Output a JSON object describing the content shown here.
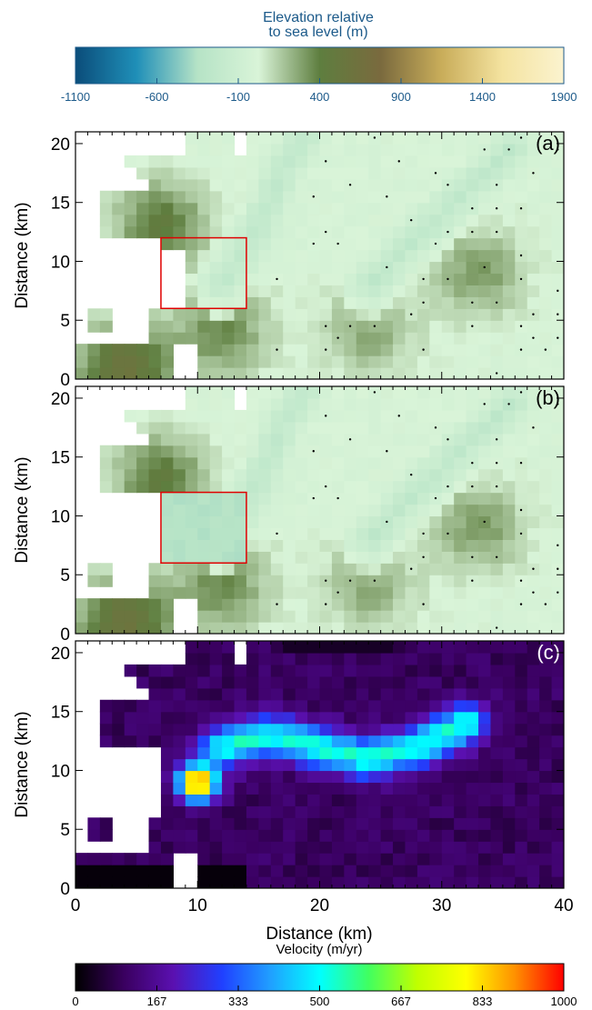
{
  "colors": {
    "elevation_stops": [
      "#0b4d7a",
      "#1f8fb8",
      "#b6e3c6",
      "#d9f4d8",
      "#5e7e3f",
      "#7a6a3e",
      "#c9ad5a",
      "#f4e3a0",
      "#fbf3cf"
    ],
    "velocity_stops": [
      "#000000",
      "#3a0060",
      "#5a10b0",
      "#2040ff",
      "#20a0ff",
      "#00ffff",
      "#40ff60",
      "#c0ff00",
      "#ffff00",
      "#ff9000",
      "#ff0000"
    ],
    "axis_label": "#000000",
    "colorbar_tick": "#1c5a8a",
    "box": "#e00000"
  },
  "top_colorbar": {
    "title_line1": "Elevation relative",
    "title_line2": "to sea level (m)",
    "ticks": [
      "-1100",
      "-600",
      "-100",
      "400",
      "900",
      "1400",
      "1900"
    ]
  },
  "bottom_colorbar": {
    "title": "Velocity (m/yr)",
    "ticks": [
      "0",
      "167",
      "333",
      "500",
      "667",
      "833",
      "1000"
    ]
  },
  "panels": {
    "ylabel": "Distance (km)",
    "xlabel": "Distance (km)",
    "a_label": "(a)",
    "b_label": "(b)",
    "c_label": "(c)"
  },
  "chart_data": [
    {
      "type": "heatmap",
      "panel": "(a)",
      "variable": "Elevation relative to sea level (m)",
      "xlabel": "",
      "ylabel": "Distance (km)",
      "xlim": [
        0,
        40
      ],
      "ylim": [
        0,
        21
      ],
      "yticks": [
        0,
        5,
        10,
        15,
        20
      ],
      "clim": [
        -1100,
        1900
      ],
      "box_km": {
        "x0": 7,
        "x1": 14,
        "y0": 6,
        "y1": 12
      },
      "features": {
        "ridges": [
          {
            "points": [
              [
                12,
                8
              ],
              [
                15,
                13
              ],
              [
                17,
                18
              ],
              [
                19,
                21
              ]
            ],
            "value": -250
          },
          {
            "points": [
              [
                24,
                8
              ],
              [
                28,
                12
              ],
              [
                32,
                16
              ],
              [
                36,
                20
              ]
            ],
            "value": -250
          }
        ],
        "brown_hills": [
          {
            "x": 7,
            "y": 13,
            "value": 450
          },
          {
            "x": 4,
            "y": 1,
            "value": 600
          },
          {
            "x": 12,
            "y": 4,
            "value": 350
          },
          {
            "x": 24,
            "y": 4,
            "value": 250
          },
          {
            "x": 33,
            "y": 9,
            "value": 300
          }
        ]
      }
    },
    {
      "type": "heatmap",
      "panel": "(b)",
      "variable": "Elevation relative to sea level (m)",
      "xlabel": "",
      "ylabel": "Distance (km)",
      "xlim": [
        0,
        40
      ],
      "ylim": [
        0,
        21
      ],
      "yticks": [
        0,
        5,
        10,
        15,
        20
      ],
      "clim": [
        -1100,
        1900
      ],
      "box_km": {
        "x0": 7,
        "x1": 14,
        "y0": 6,
        "y1": 12
      },
      "features": {
        "box_fill_value": -350,
        "ridges": [
          {
            "points": [
              [
                12,
                8
              ],
              [
                15,
                13
              ],
              [
                17,
                18
              ],
              [
                19,
                21
              ]
            ],
            "value": -250
          },
          {
            "points": [
              [
                24,
                8
              ],
              [
                28,
                12
              ],
              [
                32,
                16
              ],
              [
                36,
                20
              ]
            ],
            "value": -250
          }
        ]
      }
    },
    {
      "type": "heatmap",
      "panel": "(c)",
      "variable": "Velocity (m/yr)",
      "xlabel": "Distance (km)",
      "ylabel": "Distance (km)",
      "xlim": [
        0,
        40
      ],
      "ylim": [
        0,
        21
      ],
      "xticks": [
        0,
        10,
        20,
        30,
        40
      ],
      "yticks": [
        0,
        5,
        10,
        15,
        20
      ],
      "clim": [
        0,
        1000
      ],
      "features": {
        "peak": {
          "x": 10,
          "y": 9,
          "value": 1000
        },
        "fast_band": [
          [
            12,
            12
          ],
          [
            16,
            13
          ],
          [
            20,
            12
          ],
          [
            24,
            11
          ],
          [
            28,
            12
          ],
          [
            32,
            14
          ]
        ],
        "background_value": 100
      }
    }
  ]
}
